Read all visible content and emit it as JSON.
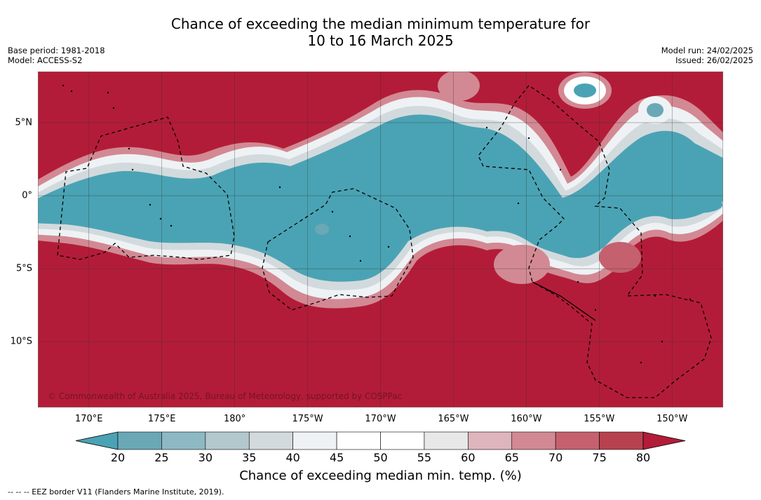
{
  "title": {
    "line1": "Chance of exceeding the median minimum temperature for",
    "line2": "10 to 16 March 2025"
  },
  "meta": {
    "base_period": "Base period: 1981-2018",
    "model": "Model: ACCESS-S2",
    "model_run": "Model run: 24/02/2025",
    "issued": "Issued: 26/02/2025"
  },
  "map": {
    "x_ticks": [
      {
        "lon": 170,
        "label": "170°E"
      },
      {
        "lon": 175,
        "label": "175°E"
      },
      {
        "lon": 180,
        "label": "180°"
      },
      {
        "lon": 185,
        "label": "175°W"
      },
      {
        "lon": 190,
        "label": "170°W"
      },
      {
        "lon": 195,
        "label": "165°W"
      },
      {
        "lon": 200,
        "label": "160°W"
      },
      {
        "lon": 205,
        "label": "155°W"
      },
      {
        "lon": 210,
        "label": "150°W"
      }
    ],
    "y_ticks": [
      {
        "lat": 5,
        "label": "5°N"
      },
      {
        "lat": 0,
        "label": "0°"
      },
      {
        "lat": -5,
        "label": "5°S"
      },
      {
        "lat": -10,
        "label": "10°S"
      }
    ],
    "lon_range": [
      166.5,
      213.5
    ],
    "lat_range": [
      -14.5,
      8.5
    ],
    "copyright": "© Commonwealth of Australia 2025, Bureau of Meteorology, supported by COSPPac",
    "colors": {
      "above": "#b31c38",
      "below": "#4aa3b4",
      "neutral": "#ffffff"
    }
  },
  "colorbar": {
    "ticks": [
      "20",
      "25",
      "30",
      "35",
      "40",
      "45",
      "50",
      "55",
      "60",
      "65",
      "70",
      "75",
      "80"
    ],
    "colors": [
      "#4aa3b4",
      "#6aa8b6",
      "#8cb9c4",
      "#b2c8cd",
      "#d3dadd",
      "#eef2f4",
      "#ffffff",
      "#ffffff",
      "#e8e8e8",
      "#dfb5bd",
      "#d28993",
      "#c5606f",
      "#b8414e",
      "#b31c38"
    ],
    "label": "Chance of exceeding median min. temp. (%)"
  },
  "footnote": "--  --  -- EEZ border V11 (Flanders Marine Institute, 2019)."
}
